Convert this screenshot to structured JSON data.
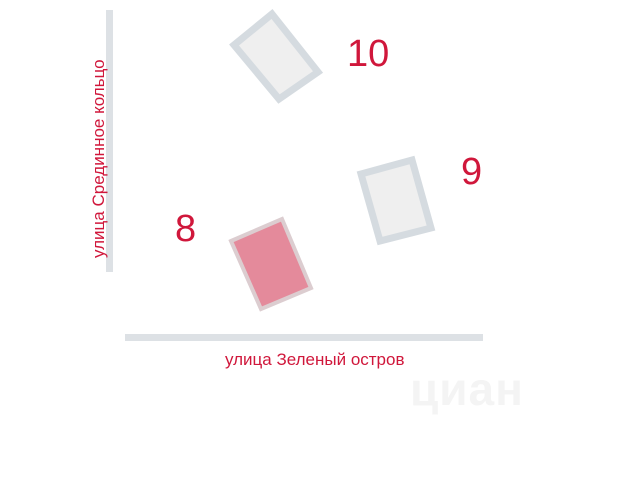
{
  "streets": {
    "vertical": "улица  Срединное кольцо",
    "horizontal": "улица  Зеленый остров"
  },
  "buildings": [
    {
      "number": "10",
      "highlighted": false
    },
    {
      "number": "9",
      "highlighted": false
    },
    {
      "number": "8",
      "highlighted": true
    }
  ],
  "watermark": "циан",
  "colors": {
    "accent": "#d0173b",
    "highlight_fill": "#e48a9b",
    "building_fill": "#efefef",
    "building_stroke": "#d5dbe0",
    "road": "#dde1e5"
  }
}
